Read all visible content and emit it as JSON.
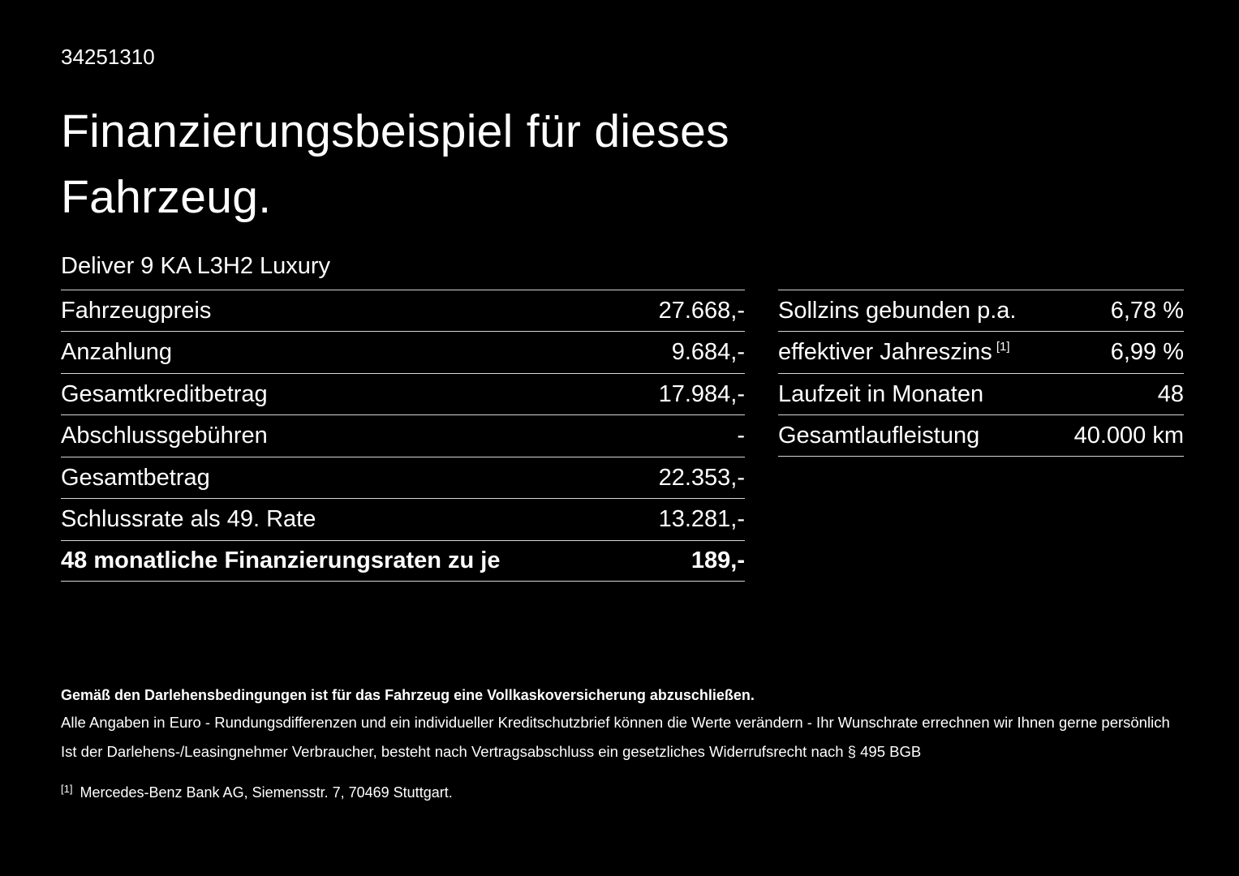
{
  "page": {
    "doc_id": "34251310",
    "title": "Finanzierungsbeispiel für dieses Fahrzeug.",
    "vehicle_name": "Deliver 9 KA L3H2 Luxury"
  },
  "left_table": {
    "rows": [
      {
        "label": "Fahrzeugpreis",
        "value": "27.668,-"
      },
      {
        "label": "Anzahlung",
        "value": "9.684,-"
      },
      {
        "label": "Gesamtkreditbetrag",
        "value": "17.984,-"
      },
      {
        "label": "Abschlussgebühren",
        "value": "-"
      },
      {
        "label": "Gesamtbetrag",
        "value": "22.353,-"
      },
      {
        "label": "Schlussrate als 49. Rate",
        "value": "13.281,-"
      },
      {
        "label": "48 monatliche Finanzierungsraten zu je",
        "value": "189,-"
      }
    ]
  },
  "right_table": {
    "rows": [
      {
        "label": "Sollzins gebunden p.a.",
        "sup": "",
        "value": "6,78 %"
      },
      {
        "label": "effektiver Jahreszins",
        "sup": "[1]",
        "value": "6,99 %"
      },
      {
        "label": "Laufzeit in Monaten",
        "sup": "",
        "value": "48"
      },
      {
        "label": "Gesamtlaufleistung",
        "sup": "",
        "value": "40.000 km"
      }
    ]
  },
  "footnotes": {
    "bold_note": "Gemäß den Darlehensbedingungen ist für das Fahrzeug eine Vollkaskoversicherung abzuschließen.",
    "note1": "Alle Angaben in Euro - Rundungsdifferenzen und ein individueller Kreditschutzbrief können die Werte verändern - Ihr Wunschrate errechnen wir Ihnen gerne persönlich",
    "note2": "Ist der Darlehens-/Leasingnehmer Verbraucher, besteht nach Vertragsabschluss ein gesetzliches Widerrufsrecht nach § 495 BGB",
    "ref_marker": "[1]",
    "ref_text": "Mercedes-Benz Bank AG, Siemensstr. 7, 70469 Stuttgart."
  },
  "colors": {
    "background": "#000000",
    "text": "#ffffff",
    "divider": "#d6d6d6"
  }
}
